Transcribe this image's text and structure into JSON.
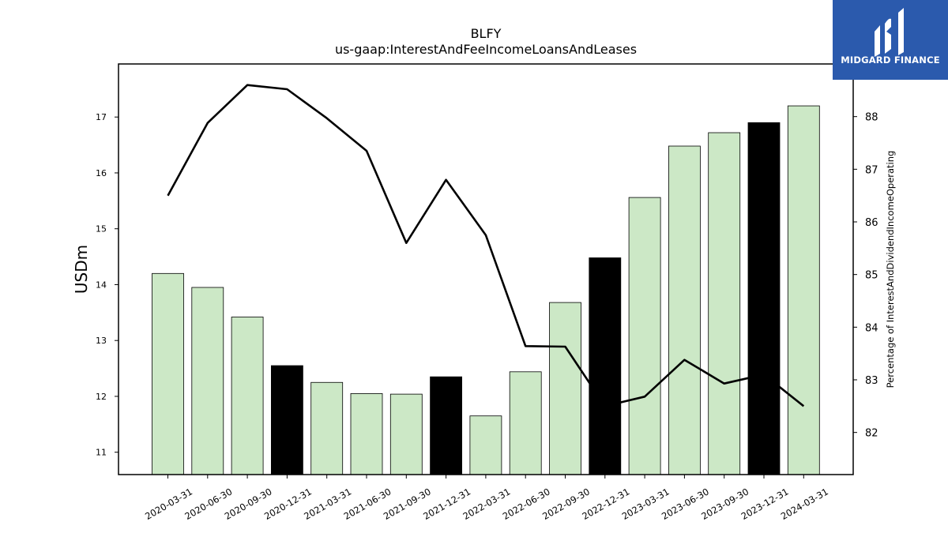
{
  "brand": {
    "name": "MIDGARD FINANCE",
    "color": "#2b5aad",
    "icon": "midgard-logo-icon"
  },
  "chart_data": {
    "type": "bar",
    "title": "BLFY",
    "subtitle": "us-gaap:InterestAndFeeIncomeLoansAndLeases",
    "ylabel": "USDm",
    "y2label": "Percentage of InterestAndDividendIncomeOperating",
    "ylim": [
      10.6,
      17.95
    ],
    "y2lim": [
      81.2,
      89.0
    ],
    "yticks": [
      11,
      12,
      13,
      14,
      15,
      16,
      17
    ],
    "y2ticks": [
      82,
      83,
      84,
      85,
      86,
      87,
      88
    ],
    "categories": [
      "2020-03-31",
      "2020-06-30",
      "2020-09-30",
      "2020-12-31",
      "2021-03-31",
      "2021-06-30",
      "2021-09-30",
      "2021-12-31",
      "2022-03-31",
      "2022-06-30",
      "2022-09-30",
      "2022-12-31",
      "2023-03-31",
      "2023-06-30",
      "2023-09-30",
      "2023-12-31",
      "2024-03-31"
    ],
    "series": [
      {
        "kind": "bar",
        "axis": "left",
        "values": [
          14.2,
          13.95,
          13.42,
          12.55,
          12.25,
          12.05,
          12.04,
          12.35,
          11.65,
          12.44,
          13.68,
          14.48,
          15.56,
          16.48,
          16.72,
          16.9,
          17.2
        ],
        "colors": [
          "#cce8c6",
          "#cce8c6",
          "#cce8c6",
          "#000000",
          "#cce8c6",
          "#cce8c6",
          "#cce8c6",
          "#000000",
          "#cce8c6",
          "#cce8c6",
          "#cce8c6",
          "#000000",
          "#cce8c6",
          "#cce8c6",
          "#cce8c6",
          "#000000",
          "#cce8c6"
        ]
      },
      {
        "kind": "line",
        "axis": "right",
        "color": "#000000",
        "values": [
          86.5,
          87.88,
          88.6,
          88.52,
          87.97,
          87.35,
          85.6,
          86.8,
          85.75,
          83.64,
          83.63,
          82.5,
          82.68,
          83.38,
          82.93,
          83.1,
          82.5
        ]
      }
    ]
  }
}
